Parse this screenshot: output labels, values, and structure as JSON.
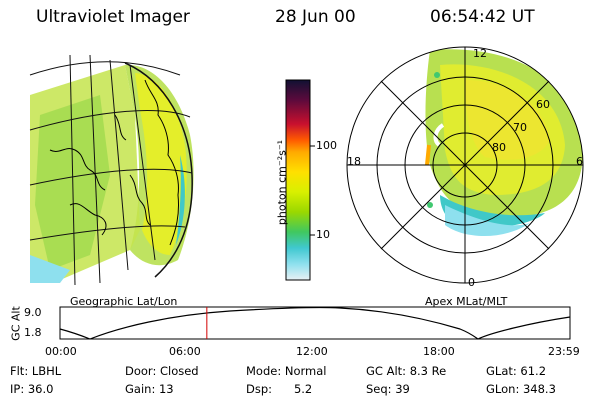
{
  "header": {
    "instrument": "Ultraviolet Imager",
    "date": "28 Jun 00",
    "time": "06:54:42 UT"
  },
  "geo_panel": {
    "label": "Geographic Lat/Lon"
  },
  "polar_panel": {
    "label": "Apex MLat/MLT",
    "mlt_labels": {
      "top": "12",
      "left": "18",
      "right": "6",
      "bottom": "0"
    },
    "lat_labels": [
      "60",
      "70",
      "80"
    ]
  },
  "colorbar": {
    "unit_label": "photon cm⁻²s⁻¹",
    "ticks": [
      "100",
      "10"
    ],
    "colors": [
      "#111133",
      "#5c0a3c",
      "#c8102e",
      "#ff5a00",
      "#ffaa00",
      "#ffe000",
      "#d8f000",
      "#9ad800",
      "#40c860",
      "#40c8d0",
      "#8ee0ee",
      "#e8f0f4"
    ]
  },
  "altitude_plot": {
    "ylabel": "GC Alt",
    "yticks": [
      "9.0",
      "1.8"
    ],
    "xticks": [
      "00:00",
      "06:00",
      "12:00",
      "18:00",
      "23:59"
    ],
    "marker_hour": 6.91,
    "marker_color": "#d40000"
  },
  "status": {
    "filter": "Flt: LBHL",
    "ip": "IP: 36.0",
    "door": "Door: Closed",
    "gain": "Gain: 13",
    "mode": "Mode: Normal",
    "dsp": "Dsp:      5.2",
    "gc_alt": "GC Alt: 8.3 Re",
    "seq": "Seq: 39",
    "glat": "GLat:  61.2",
    "glon": "GLon: 348.3"
  }
}
